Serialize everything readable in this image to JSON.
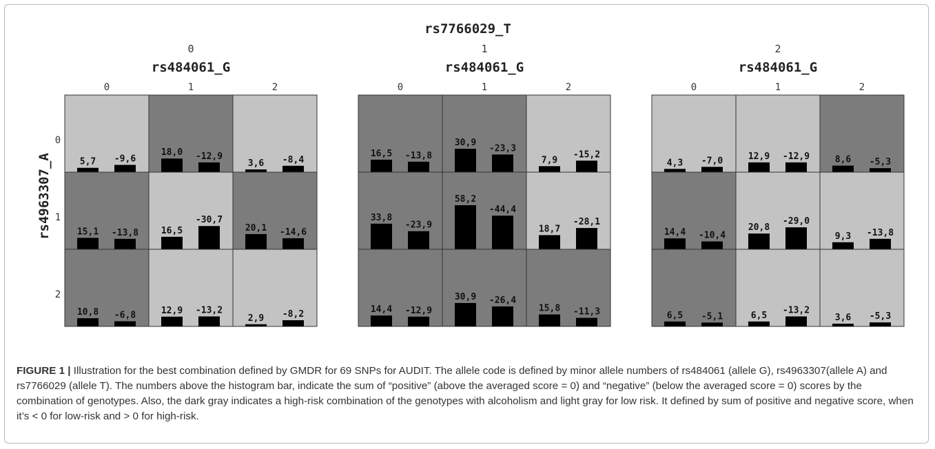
{
  "chart_data": {
    "type": "bar",
    "title": "rs7766029_T",
    "panel_column_label": "rs484061_G",
    "row_axis_label": "rs4963307_A",
    "row_labels": [
      "0",
      "1",
      "2"
    ],
    "column_labels": [
      "0",
      "1",
      "2"
    ],
    "colors": {
      "high_risk": "#7c7c7c",
      "low_risk": "#c3c3c3",
      "bar": "#000000"
    },
    "panels": [
      {
        "label": "0",
        "cells": [
          [
            {
              "risk": "low",
              "positive": "5,7",
              "negative": "-9,6",
              "pos": 5.7,
              "neg": 9.6
            },
            {
              "risk": "high",
              "positive": "18,0",
              "negative": "-12,9",
              "pos": 18.0,
              "neg": 12.9
            },
            {
              "risk": "low",
              "positive": "3,6",
              "negative": "-8,4",
              "pos": 3.6,
              "neg": 8.4
            }
          ],
          [
            {
              "risk": "high",
              "positive": "15,1",
              "negative": "-13,8",
              "pos": 15.1,
              "neg": 13.8
            },
            {
              "risk": "low",
              "positive": "16,5",
              "negative": "-30,7",
              "pos": 16.5,
              "neg": 30.7
            },
            {
              "risk": "high",
              "positive": "20,1",
              "negative": "-14,6",
              "pos": 20.1,
              "neg": 14.6
            }
          ],
          [
            {
              "risk": "high",
              "positive": "10,8",
              "negative": "-6,8",
              "pos": 10.8,
              "neg": 6.8
            },
            {
              "risk": "low",
              "positive": "12,9",
              "negative": "-13,2",
              "pos": 12.9,
              "neg": 13.2
            },
            {
              "risk": "low",
              "positive": "2,9",
              "negative": "-8,2",
              "pos": 2.9,
              "neg": 8.2
            }
          ]
        ]
      },
      {
        "label": "1",
        "cells": [
          [
            {
              "risk": "high",
              "positive": "16,5",
              "negative": "-13,8",
              "pos": 16.5,
              "neg": 13.8
            },
            {
              "risk": "high",
              "positive": "30,9",
              "negative": "-23,3",
              "pos": 30.9,
              "neg": 23.3
            },
            {
              "risk": "low",
              "positive": "7,9",
              "negative": "-15,2",
              "pos": 7.9,
              "neg": 15.2
            }
          ],
          [
            {
              "risk": "high",
              "positive": "33,8",
              "negative": "-23,9",
              "pos": 33.8,
              "neg": 23.9
            },
            {
              "risk": "high",
              "positive": "58,2",
              "negative": "-44,4",
              "pos": 58.2,
              "neg": 44.4
            },
            {
              "risk": "low",
              "positive": "18,7",
              "negative": "-28,1",
              "pos": 18.7,
              "neg": 28.1
            }
          ],
          [
            {
              "risk": "high",
              "positive": "14,4",
              "negative": "-12,9",
              "pos": 14.4,
              "neg": 12.9
            },
            {
              "risk": "high",
              "positive": "30,9",
              "negative": "-26,4",
              "pos": 30.9,
              "neg": 26.4
            },
            {
              "risk": "high",
              "positive": "15,8",
              "negative": "-11,3",
              "pos": 15.8,
              "neg": 11.3
            }
          ]
        ]
      },
      {
        "label": "2",
        "cells": [
          [
            {
              "risk": "low",
              "positive": "4,3",
              "negative": "-7,0",
              "pos": 4.3,
              "neg": 7.0
            },
            {
              "risk": "low",
              "positive": "12,9",
              "negative": "-12,9",
              "pos": 12.9,
              "neg": 12.9
            },
            {
              "risk": "high",
              "positive": "8,6",
              "negative": "-5,3",
              "pos": 8.6,
              "neg": 5.3
            }
          ],
          [
            {
              "risk": "high",
              "positive": "14,4",
              "negative": "-10,4",
              "pos": 14.4,
              "neg": 10.4
            },
            {
              "risk": "low",
              "positive": "20,8",
              "negative": "-29,0",
              "pos": 20.8,
              "neg": 29.0
            },
            {
              "risk": "low",
              "positive": "9,3",
              "negative": "-13,8",
              "pos": 9.3,
              "neg": 13.8
            }
          ],
          [
            {
              "risk": "high",
              "positive": "6,5",
              "negative": "-5,1",
              "pos": 6.5,
              "neg": 5.1
            },
            {
              "risk": "low",
              "positive": "6,5",
              "negative": "-13,2",
              "pos": 6.5,
              "neg": 13.2
            },
            {
              "risk": "low",
              "positive": "3,6",
              "negative": "-5,3",
              "pos": 3.6,
              "neg": 5.3
            }
          ]
        ]
      }
    ]
  },
  "caption": {
    "label": "FIGURE 1 |",
    "text": " Illustration for the best combination defined by GMDR for 69 SNPs for AUDIT. The allele code is defined by minor allele numbers of rs484061 (allele G), rs4963307(allele A) and rs7766029 (allele T). The numbers above the histogram bar, indicate the sum of “positive” (above the averaged score = 0) and “negative” (below the averaged score = 0) scores by the combination of genotypes. Also, the dark gray indicates a high-risk combination of the genotypes with alcoholism and light gray for low risk. It defined by sum of positive and negative score, when it’s < 0 for low-risk and > 0 for high-risk."
  }
}
